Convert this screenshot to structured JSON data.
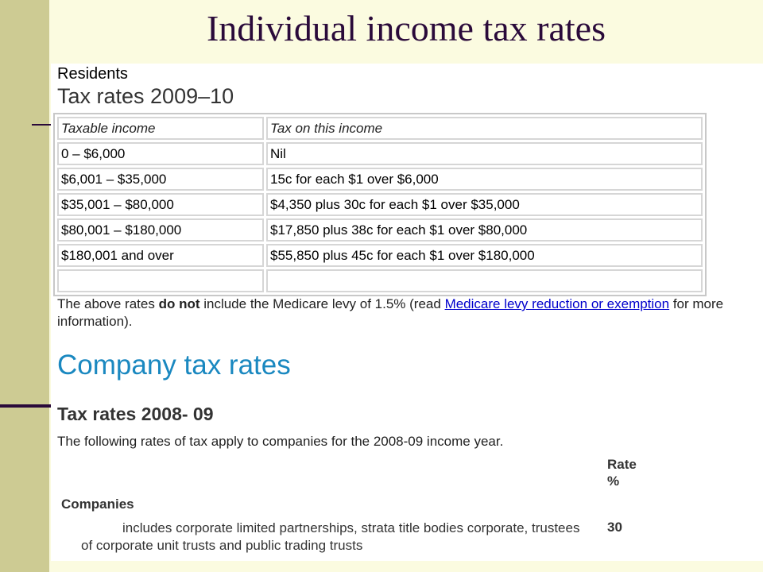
{
  "slide": {
    "title": "Individual income tax rates"
  },
  "residents": {
    "label": "Residents",
    "heading": "Tax rates 2009–10",
    "table": {
      "headers": [
        "Taxable income",
        "Tax on this income"
      ],
      "rows": [
        [
          "0 – $6,000",
          "Nil"
        ],
        [
          "$6,001 – $35,000",
          "15c for each $1 over $6,000"
        ],
        [
          "$35,001 – $80,000",
          "$4,350 plus 30c for each $1 over $35,000"
        ],
        [
          "$80,001 – $180,000",
          "$17,850 plus 38c for each $1 over $80,000"
        ],
        [
          "$180,001 and over",
          "$55,850 plus 45c for each $1 over $180,000"
        ],
        [
          "",
          ""
        ]
      ]
    },
    "note": {
      "before": "The above rates ",
      "bold": "do not",
      "middle": " include the Medicare levy of 1.5% (read ",
      "link": "Medicare levy reduction or exemption",
      "after": " for more information)."
    }
  },
  "company": {
    "heading": "Company tax rates",
    "subheading": "Tax rates 2008- 09",
    "description": "The following rates of tax apply to companies for the 2008-09 income year.",
    "rate_header_line1": "Rate",
    "rate_header_line2": "%",
    "companies_label": "Companies",
    "companies_desc": "includes corporate limited partnerships, strata title bodies corporate, trustees of corporate unit trusts and public trading trusts",
    "companies_rate": "30"
  }
}
